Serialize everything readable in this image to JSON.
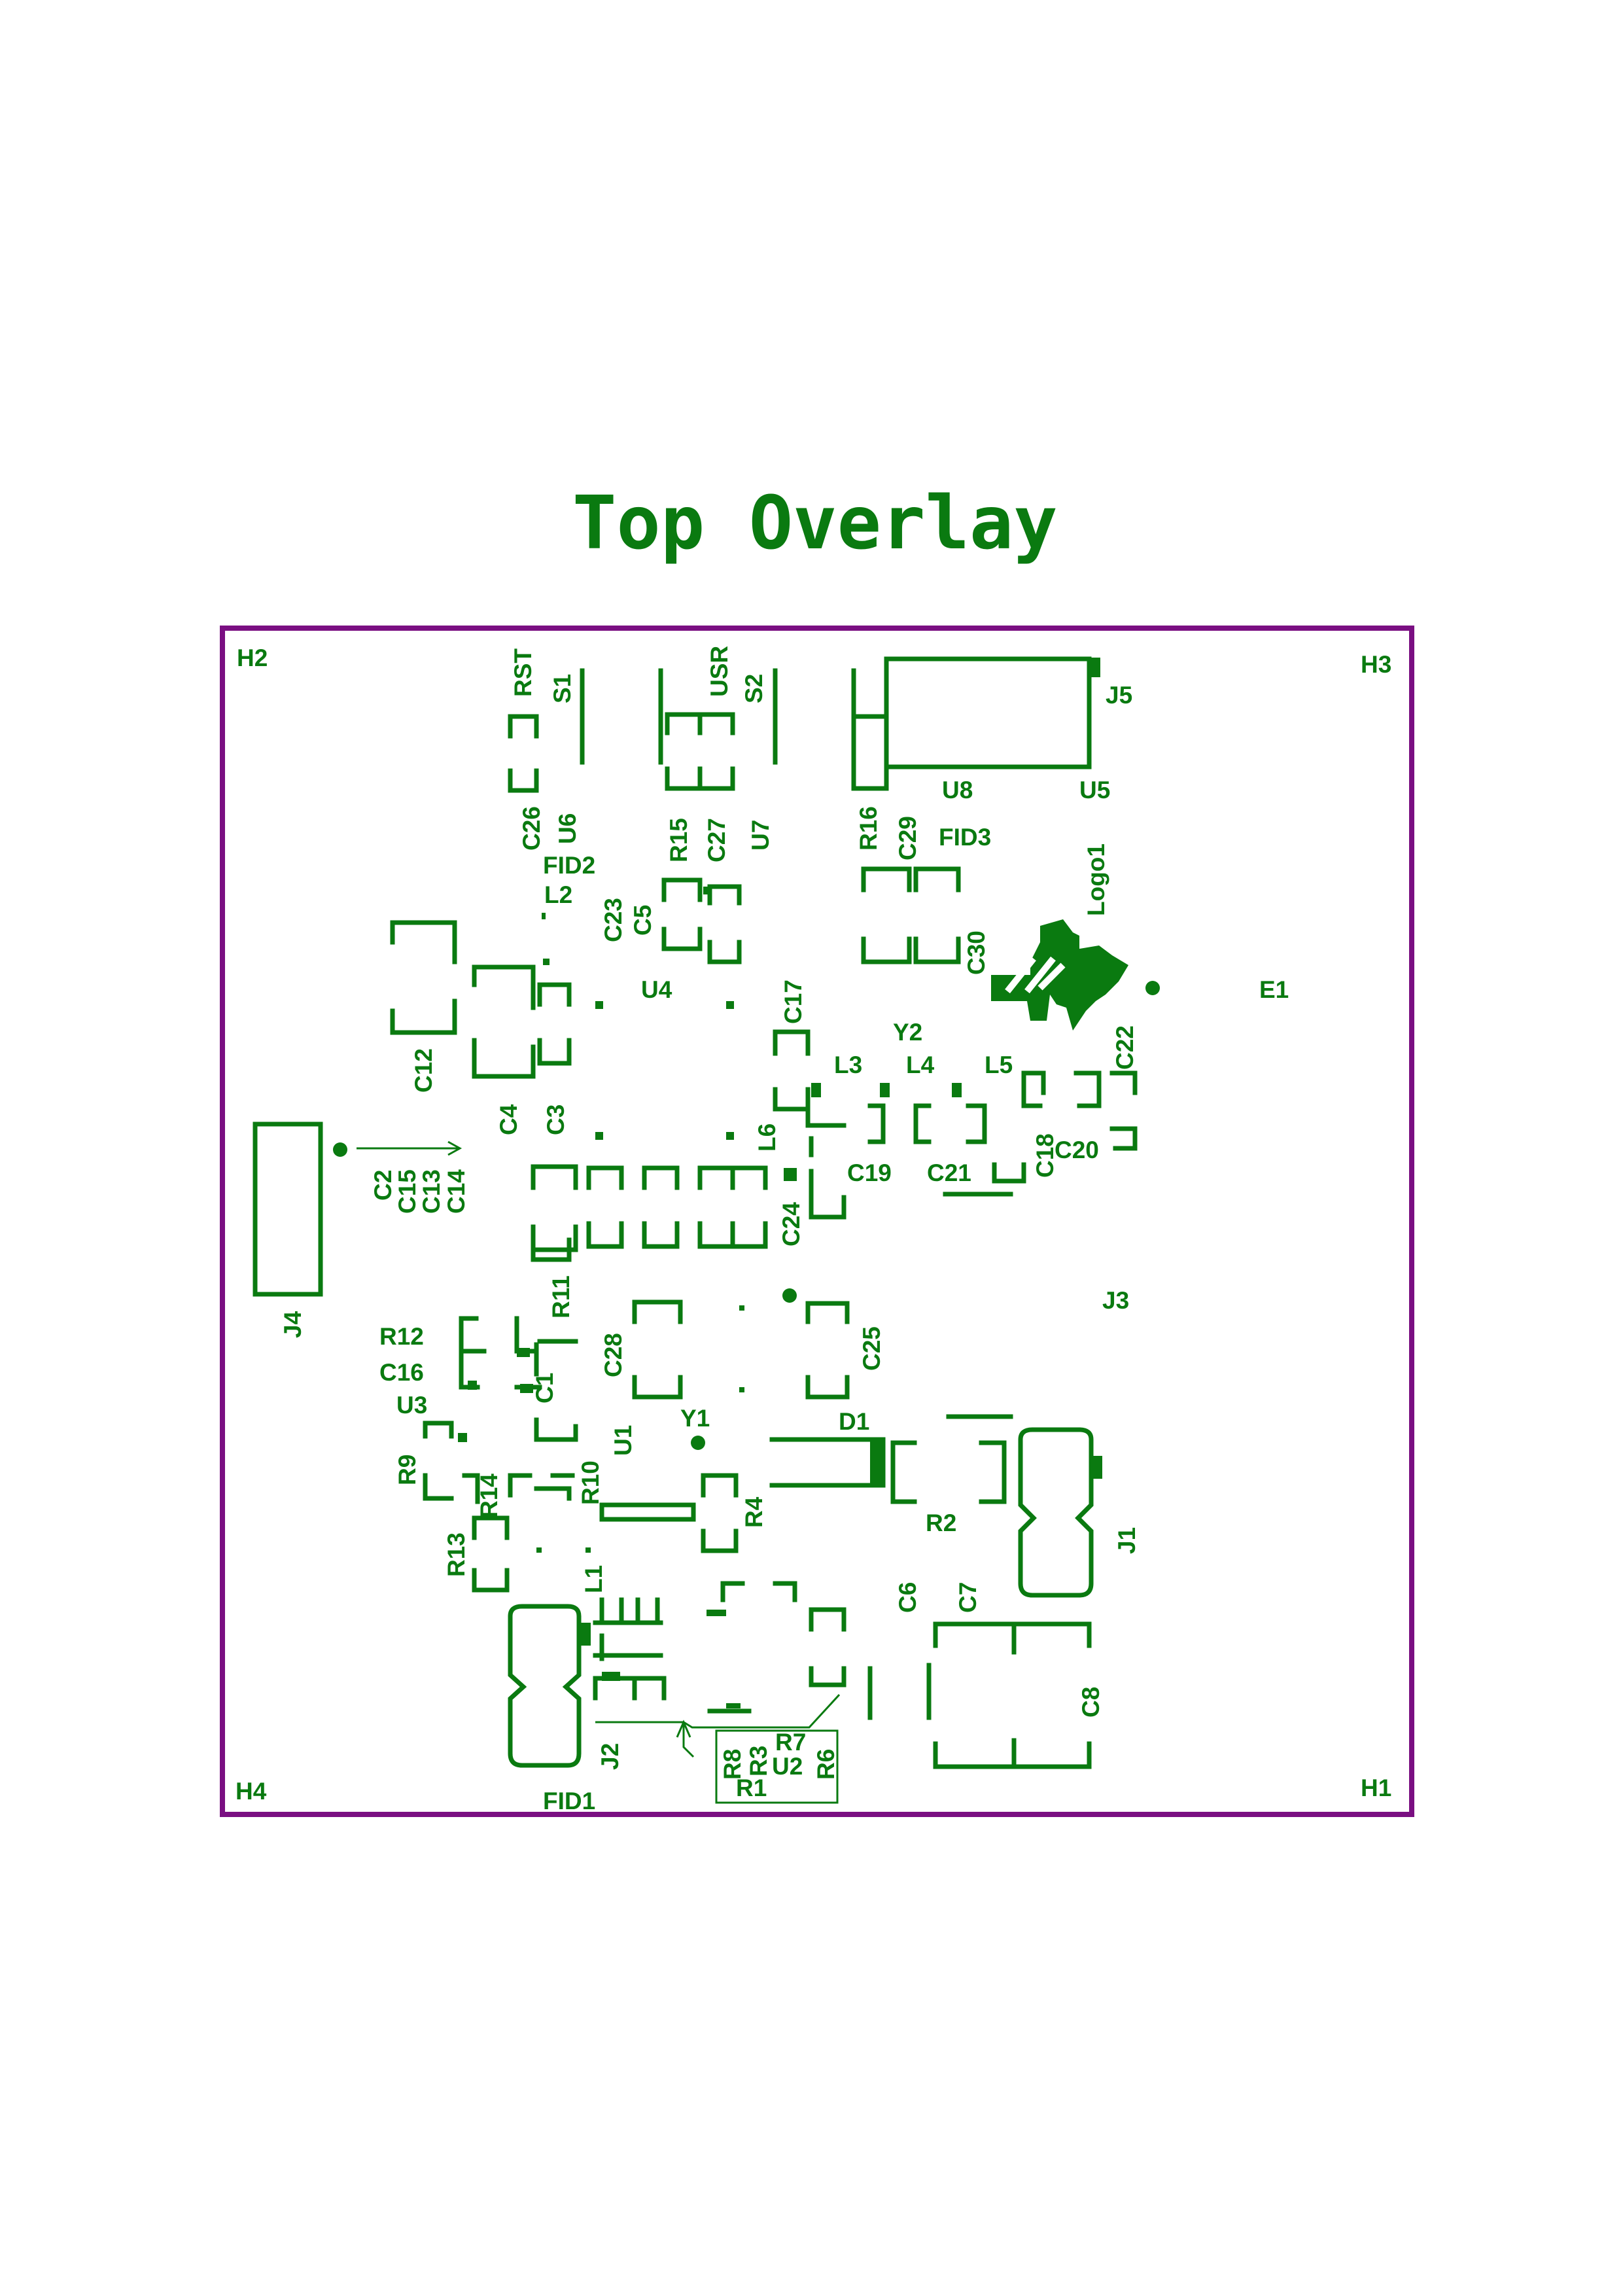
{
  "title": "Top Overlay",
  "colors": {
    "silkscreen": "#0a7a10",
    "board_outline": "#7a0f82",
    "background": "#ffffff"
  },
  "labels": {
    "H1": "H1",
    "H2": "H2",
    "H3": "H3",
    "H4": "H4",
    "RST": "RST",
    "S1": "S1",
    "USR": "USR",
    "S2": "S2",
    "J5": "J5",
    "U8": "U8",
    "U5": "U5",
    "C26": "C26",
    "U6": "U6",
    "R15": "R15",
    "C27": "C27",
    "U7": "U7",
    "R16": "R16",
    "C29": "C29",
    "FID3": "FID3",
    "Logo1": "Logo1",
    "FID2": "FID2",
    "L2": "L2",
    "C23": "C23",
    "C5": "C5",
    "C30": "C30",
    "U4": "U4",
    "E1": "E1",
    "C17": "C17",
    "Y2": "Y2",
    "L3": "L3",
    "L4": "L4",
    "L5": "L5",
    "C12": "C12",
    "C4": "C4",
    "C3": "C3",
    "L6": "L6",
    "C22": "C22",
    "C19": "C19",
    "C21": "C21",
    "C18": "C18",
    "C20": "C20",
    "C2": "C2",
    "C15": "C15",
    "C13": "C13",
    "C14": "C14",
    "C24": "C24",
    "J4": "J4",
    "R11": "R11",
    "J3": "J3",
    "R12": "R12",
    "C28": "C28",
    "C25": "C25",
    "C16": "C16",
    "C1": "C1",
    "U3": "U3",
    "U1": "U1",
    "Y1": "Y1",
    "D1": "D1",
    "R9": "R9",
    "R14": "R14",
    "R10": "R10",
    "R4": "R4",
    "R2": "R2",
    "J1": "J1",
    "R13": "R13",
    "L1": "L1",
    "C6": "C6",
    "C7": "C7",
    "C8": "C8",
    "J2": "J2",
    "R8": "R8",
    "R3": "R3",
    "R7": "R7",
    "U2": "U2",
    "R6": "R6",
    "R1": "R1",
    "FID1": "FID1"
  }
}
